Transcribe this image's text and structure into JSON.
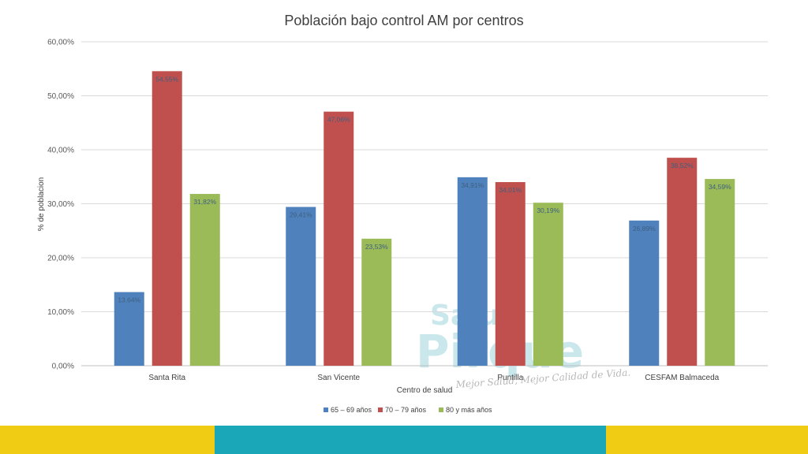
{
  "chart_data": {
    "type": "bar",
    "title": "Población bajo control AM por centros",
    "xlabel": "Centro de salud",
    "ylabel": "% de poblacion",
    "ylim": [
      0,
      60
    ],
    "yticks": [
      "0,00%",
      "10,00%",
      "20,00%",
      "30,00%",
      "40,00%",
      "50,00%",
      "60,00%"
    ],
    "ytick_values": [
      0,
      10,
      20,
      30,
      40,
      50,
      60
    ],
    "categories": [
      "Santa Rita",
      "San Vicente",
      "Puntilla",
      "CESFAM Balmaceda"
    ],
    "series": [
      {
        "name": "65 – 69 años",
        "color": "#4f81bd",
        "values": [
          13.64,
          29.41,
          34.91,
          26.89
        ],
        "labels": [
          "13,64%",
          "29,41%",
          "34,91%",
          "26,89%"
        ]
      },
      {
        "name": "70 – 79 años",
        "color": "#c0504d",
        "values": [
          54.55,
          47.06,
          34.01,
          38.52
        ],
        "labels": [
          "54,55%",
          "47,06%",
          "34,01%",
          "38,52%"
        ]
      },
      {
        "name": "80 y más años",
        "color": "#9bbb59",
        "values": [
          31.82,
          23.53,
          30.19,
          34.59
        ],
        "labels": [
          "31,82%",
          "23,53%",
          "30,19%",
          "34,59%"
        ]
      }
    ],
    "grid": true,
    "legend": "bottom"
  },
  "watermark": {
    "top": "Salud",
    "main": "Pirque",
    "slogan": "Mejor Salud, Mejor Calidad de Vida."
  },
  "footer": {
    "colors": [
      "#f0cd14",
      "#1aa7b8",
      "#f0cd14"
    ]
  }
}
